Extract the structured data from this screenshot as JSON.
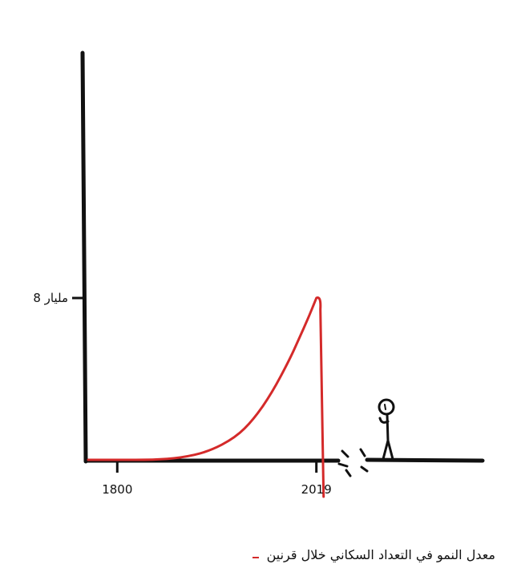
{
  "chart_data": {
    "type": "line",
    "title": "",
    "xlabel": "",
    "ylabel": "",
    "x_ticks": [
      {
        "value": 1800,
        "label": "1800"
      },
      {
        "value": 2019,
        "label": "2019"
      }
    ],
    "y_ticks": [
      {
        "value": 8,
        "label": "8 مليار"
      }
    ],
    "xlim": [
      1768,
      2200
    ],
    "ylim": [
      0,
      15
    ],
    "series": [
      {
        "name": "معدل النمو في التعداد السكاني خلال قرنين",
        "color": "#d42a2a",
        "x": [
          1768,
          1800,
          1840,
          1870,
          1900,
          1930,
          1950,
          1970,
          1990,
          2000,
          2010,
          2019
        ],
        "y": [
          0.0,
          0.0,
          0.0,
          0.1,
          0.4,
          1.1,
          2.0,
          3.3,
          5.0,
          6.0,
          7.0,
          8.0
        ]
      }
    ],
    "legend_position": "bottom-right",
    "grid": false
  },
  "legend": {
    "label": "معدل النمو في التعداد السكاني خلال قرنين",
    "color": "#d42a2a"
  }
}
